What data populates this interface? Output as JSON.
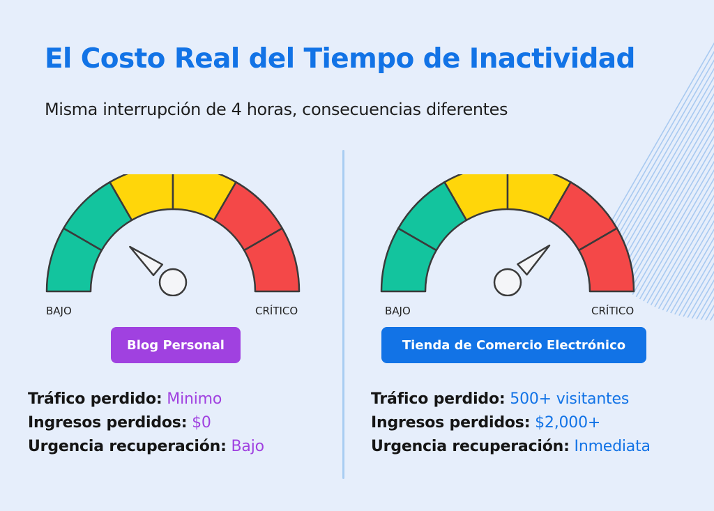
{
  "title": "El Costo Real del Tiempo de Inactividad",
  "subtitle": "Misma interrupción de 4 horas, consecuencias diferentes",
  "colors": {
    "title": "#1273e6",
    "gauge_green": "#13c49e",
    "gauge_yellow": "#ffd60a",
    "gauge_red": "#f44848",
    "personal_accent": "#a041e0",
    "ecommerce_accent": "#1273e6"
  },
  "scale": {
    "low": "BAJO",
    "high": "CRÍTICO"
  },
  "left": {
    "badge": "Blog Personal",
    "gauge_level": 0.22,
    "stats": [
      {
        "label": "Tráfico perdido:",
        "value": "Minimo"
      },
      {
        "label": "Ingresos perdidos:",
        "value": "$0"
      },
      {
        "label": "Urgencia recuperación:",
        "value": "Bajo"
      }
    ]
  },
  "right": {
    "badge": "Tienda de Comercio Electrónico",
    "gauge_level": 0.77,
    "stats": [
      {
        "label": "Tráfico perdido:",
        "value": "500+ visitantes"
      },
      {
        "label": "Ingresos perdidos:",
        "value": "$2,000+"
      },
      {
        "label": "Urgencia recuperación:",
        "value": "Inmediata"
      }
    ]
  }
}
